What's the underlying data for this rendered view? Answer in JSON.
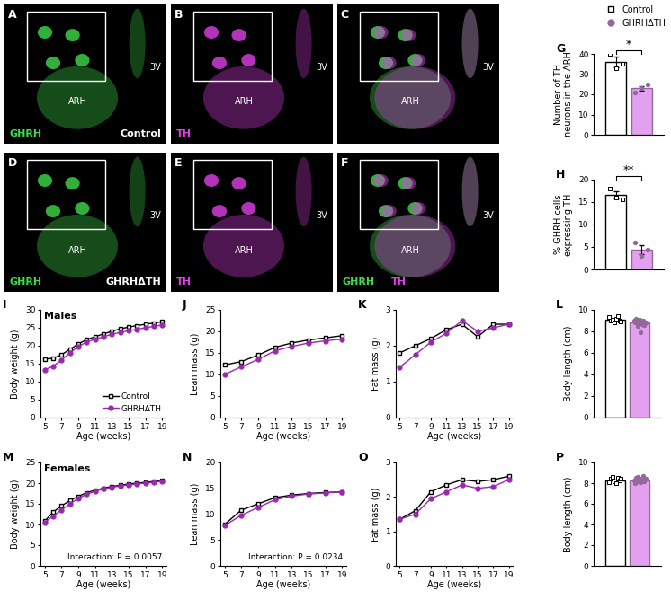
{
  "images": [
    {
      "panel": "A",
      "channels": [
        {
          "name": "GHRH",
          "color": "#3ddc4a"
        }
      ],
      "regions": [
        "ARH",
        "3V"
      ],
      "condition": "Control"
    },
    {
      "panel": "B",
      "channels": [
        {
          "name": "TH",
          "color": "#e040e8"
        }
      ],
      "regions": [
        "ARH",
        "3V"
      ]
    },
    {
      "panel": "C",
      "channels": [],
      "overlay": [
        "#3ddc4a",
        "#e040e8"
      ],
      "regions": [
        "ARH",
        "3V"
      ]
    },
    {
      "panel": "D",
      "channels": [
        {
          "name": "GHRH",
          "color": "#3ddc4a"
        }
      ],
      "regions": [
        "ARH",
        "3V"
      ],
      "condition": "GHRHΔTH"
    },
    {
      "panel": "E",
      "channels": [
        {
          "name": "TH",
          "color": "#e040e8"
        }
      ],
      "regions": [
        "ARH",
        "3V"
      ]
    },
    {
      "panel": "F",
      "channels": [
        {
          "name": "GHRH",
          "color": "#3ddc4a"
        },
        {
          "name": "TH",
          "color": "#e040e8"
        }
      ],
      "regions": [
        "ARH",
        "3V"
      ]
    }
  ],
  "chart_data": [
    {
      "panel": "G",
      "type": "bar",
      "ylabel": "Number of TH\nneurons in the ARH",
      "categories": [
        null
      ],
      "ylim": [
        0,
        40
      ],
      "yticks": [
        0,
        10,
        20,
        30,
        40
      ],
      "tick_labels": "y",
      "legend": "upper right",
      "annotations": [
        "*"
      ],
      "series": [
        {
          "name": "Control",
          "color": "#ffffff",
          "marker": "square",
          "values": [
            36
          ],
          "errors": [
            2.5
          ],
          "points": [
            [
              40,
              33,
              35
            ]
          ]
        },
        {
          "name": "GHRHΔTH",
          "color": "#e3a0ee",
          "marker": "circle",
          "values": [
            23
          ],
          "errors": [
            1.2
          ],
          "points": [
            [
              21,
              23,
              25
            ]
          ]
        }
      ]
    },
    {
      "panel": "H",
      "type": "bar",
      "ylabel": "% GHRH cells\nexpressing TH",
      "categories": [
        null
      ],
      "ylim": [
        0,
        20
      ],
      "yticks": [
        0,
        5,
        10,
        15,
        20
      ],
      "tick_labels": "y",
      "annotations": [
        "**"
      ],
      "series": [
        {
          "name": "Control",
          "color": "#ffffff",
          "marker": "square",
          "values": [
            16.5
          ],
          "errors": [
            0.8
          ],
          "points": [
            [
              18,
              16,
              15.5
            ]
          ]
        },
        {
          "name": "GHRHΔTH",
          "color": "#e3a0ee",
          "marker": "circle",
          "values": [
            4.5
          ],
          "errors": [
            1.0
          ],
          "points": [
            [
              6,
              3,
              4.5
            ]
          ]
        }
      ]
    },
    {
      "panel": "I",
      "type": "line",
      "title": "Males",
      "xlabel": "Age (weeks)",
      "ylabel": "Body weight (g)",
      "x": [
        5,
        6,
        7,
        8,
        9,
        10,
        11,
        12,
        13,
        14,
        15,
        16,
        17,
        18,
        19
      ],
      "xlim": [
        4.5,
        19.5
      ],
      "xticks": [
        5,
        7,
        9,
        11,
        13,
        15,
        17,
        19
      ],
      "ylim": [
        0,
        30
      ],
      "yticks": [
        0,
        5,
        10,
        15,
        20,
        25,
        30
      ],
      "legend": "lower right",
      "series": [
        {
          "name": "Control",
          "color": "#000000",
          "marker": "square",
          "values": [
            16.3,
            16.5,
            17.5,
            19.0,
            20.5,
            21.7,
            22.5,
            23.3,
            24.0,
            24.7,
            25.2,
            25.6,
            26.0,
            26.3,
            26.7
          ]
        },
        {
          "name": "GHRHΔTH",
          "color": "#9c27b0",
          "marker": "circle",
          "values": [
            13.3,
            14.3,
            16.0,
            18.0,
            19.8,
            21.0,
            21.8,
            22.5,
            23.2,
            23.7,
            24.2,
            24.6,
            25.0,
            25.4,
            25.8
          ]
        }
      ]
    },
    {
      "panel": "J",
      "type": "line",
      "xlabel": "Age (weeks)",
      "ylabel": "Lean mass (g)",
      "x": [
        5,
        7,
        9,
        11,
        13,
        15,
        17,
        19
      ],
      "xlim": [
        4.5,
        19.5
      ],
      "xticks": [
        5,
        7,
        9,
        11,
        13,
        15,
        17,
        19
      ],
      "ylim": [
        0,
        25
      ],
      "yticks": [
        0,
        5,
        10,
        15,
        20,
        25
      ],
      "series": [
        {
          "name": "Control",
          "color": "#000000",
          "marker": "square",
          "values": [
            12.2,
            13.0,
            14.5,
            16.3,
            17.3,
            18.0,
            18.5,
            19.0
          ]
        },
        {
          "name": "GHRHΔTH",
          "color": "#9c27b0",
          "marker": "circle",
          "values": [
            10.0,
            11.8,
            13.5,
            15.5,
            16.5,
            17.3,
            17.8,
            18.2
          ]
        }
      ]
    },
    {
      "panel": "K",
      "type": "line",
      "xlabel": "Age (weeks)",
      "ylabel": "Fat mass (g)",
      "x": [
        5,
        7,
        9,
        11,
        13,
        15,
        17,
        19
      ],
      "xlim": [
        4.5,
        19.5
      ],
      "xticks": [
        5,
        7,
        9,
        11,
        13,
        15,
        17,
        19
      ],
      "ylim": [
        0,
        3
      ],
      "yticks": [
        0,
        1,
        2,
        3
      ],
      "series": [
        {
          "name": "Control",
          "color": "#000000",
          "marker": "square",
          "values": [
            1.8,
            2.0,
            2.2,
            2.45,
            2.6,
            2.25,
            2.6,
            2.6
          ]
        },
        {
          "name": "GHRHΔTH",
          "color": "#9c27b0",
          "marker": "circle",
          "values": [
            1.4,
            1.75,
            2.1,
            2.35,
            2.7,
            2.4,
            2.5,
            2.6
          ]
        }
      ]
    },
    {
      "panel": "L",
      "type": "bar",
      "ylabel": "Body length (cm)",
      "categories": [
        null
      ],
      "ylim": [
        0,
        10
      ],
      "yticks": [
        0,
        2,
        4,
        6,
        8,
        10
      ],
      "tick_labels": "y",
      "series": [
        {
          "name": "Control",
          "color": "#ffffff",
          "marker": "square",
          "values": [
            9.1
          ],
          "errors": [
            0.1
          ],
          "points": [
            [
              9.3,
              9.0,
              9.1,
              8.8,
              9.2,
              9.4,
              9.0,
              8.9
            ]
          ]
        },
        {
          "name": "GHRHΔTH",
          "color": "#e3a0ee",
          "marker": "circle",
          "values": [
            8.8
          ],
          "errors": [
            0.12
          ],
          "points": [
            [
              9.0,
              8.8,
              9.2,
              8.5,
              8.9,
              9.1,
              7.9,
              8.7,
              9.0,
              8.6,
              8.8
            ]
          ]
        }
      ]
    },
    {
      "panel": "M",
      "type": "line",
      "title": "Females",
      "xlabel": "Age (weeks)",
      "ylabel": "Body weight (g)",
      "x": [
        5,
        6,
        7,
        8,
        9,
        10,
        11,
        12,
        13,
        14,
        15,
        16,
        17,
        18,
        19
      ],
      "xlim": [
        4.5,
        19.5
      ],
      "xticks": [
        5,
        7,
        9,
        11,
        13,
        15,
        17,
        19
      ],
      "ylim": [
        0,
        25
      ],
      "yticks": [
        0,
        5,
        10,
        15,
        20,
        25
      ],
      "annotations": [
        "Interaction: P = 0.0057"
      ],
      "series": [
        {
          "name": "Control",
          "color": "#000000",
          "marker": "square",
          "values": [
            10.8,
            13.0,
            14.5,
            15.8,
            16.8,
            17.7,
            18.3,
            18.8,
            19.2,
            19.5,
            19.8,
            20.0,
            20.2,
            20.4,
            20.6
          ]
        },
        {
          "name": "GHRHΔTH",
          "color": "#9c27b0",
          "marker": "circle",
          "values": [
            10.5,
            12.0,
            13.5,
            15.0,
            16.3,
            17.3,
            18.0,
            18.6,
            19.0,
            19.3,
            19.6,
            19.8,
            20.0,
            20.2,
            20.5
          ]
        }
      ]
    },
    {
      "panel": "N",
      "type": "line",
      "xlabel": "Age (weeks)",
      "ylabel": "Lean mass (g)",
      "x": [
        5,
        7,
        9,
        11,
        13,
        15,
        17,
        19
      ],
      "xlim": [
        4.5,
        19.5
      ],
      "xticks": [
        5,
        7,
        9,
        11,
        13,
        15,
        17,
        19
      ],
      "ylim": [
        0,
        20
      ],
      "yticks": [
        0,
        5,
        10,
        15,
        20
      ],
      "annotations": [
        "Interaction: P = 0.0234"
      ],
      "series": [
        {
          "name": "Control",
          "color": "#000000",
          "marker": "square",
          "values": [
            8.0,
            10.8,
            12.0,
            13.2,
            13.7,
            14.0,
            14.2,
            14.3
          ]
        },
        {
          "name": "GHRHΔTH",
          "color": "#9c27b0",
          "marker": "circle",
          "values": [
            7.8,
            9.8,
            11.3,
            12.8,
            13.5,
            13.9,
            14.1,
            14.3
          ]
        }
      ]
    },
    {
      "panel": "O",
      "type": "line",
      "xlabel": "Age (weeks)",
      "ylabel": "Fat mass (g)",
      "x": [
        5,
        7,
        9,
        11,
        13,
        15,
        17,
        19
      ],
      "xlim": [
        4.5,
        19.5
      ],
      "xticks": [
        5,
        7,
        9,
        11,
        13,
        15,
        17,
        19
      ],
      "ylim": [
        0,
        3
      ],
      "yticks": [
        0,
        1,
        2,
        3
      ],
      "series": [
        {
          "name": "Control",
          "color": "#000000",
          "marker": "square",
          "values": [
            1.35,
            1.6,
            2.15,
            2.35,
            2.5,
            2.45,
            2.5,
            2.6
          ]
        },
        {
          "name": "GHRHΔTH",
          "color": "#9c27b0",
          "marker": "circle",
          "values": [
            1.35,
            1.5,
            1.95,
            2.15,
            2.35,
            2.25,
            2.3,
            2.5
          ]
        }
      ]
    },
    {
      "panel": "P",
      "type": "bar",
      "ylabel": "Body length (cm)",
      "categories": [
        null
      ],
      "ylim": [
        0,
        10
      ],
      "yticks": [
        0,
        2,
        4,
        6,
        8,
        10
      ],
      "tick_labels": "y",
      "series": [
        {
          "name": "Control",
          "color": "#ffffff",
          "marker": "square",
          "values": [
            8.3
          ],
          "errors": [
            0.08
          ],
          "points": [
            [
              8.1,
              8.4,
              8.6,
              8.2,
              8.0,
              8.5,
              8.3,
              8.4
            ]
          ]
        },
        {
          "name": "GHRHΔTH",
          "color": "#e3a0ee",
          "marker": "circle",
          "values": [
            8.3
          ],
          "errors": [
            0.07
          ],
          "points": [
            [
              8.3,
              8.0,
              8.5,
              8.6,
              8.2,
              8.4,
              8.1,
              8.3,
              8.7,
              8.2,
              8.4
            ]
          ]
        }
      ]
    }
  ]
}
